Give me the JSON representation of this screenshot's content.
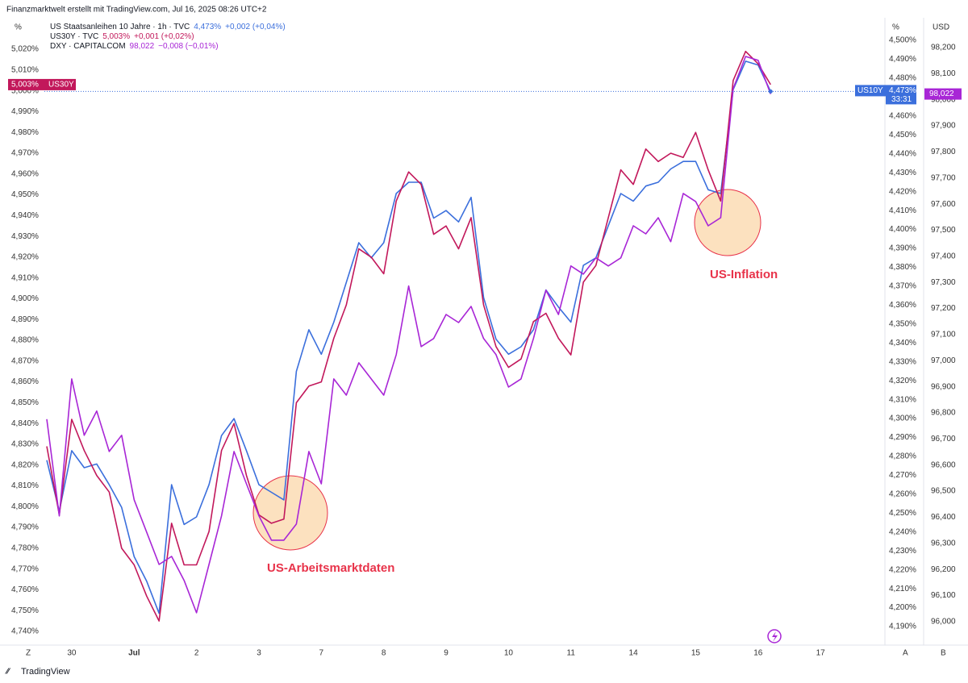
{
  "chart_data": {
    "type": "line",
    "title": "Finanzmarktwelt erstellt mit TradingView.com, Jul 16, 2025 08:26 UTC+2",
    "logo": "TradingView",
    "y_unit": "%",
    "y2_unit": "%",
    "y3_unit": "USD",
    "corner_labels": [
      "Z",
      "A",
      "B"
    ],
    "annotations": [
      "US-Arbeitsmarktdaten",
      "US-Inflation"
    ],
    "categories": [
      null,
      null,
      "30",
      null,
      null,
      null,
      null,
      "Jul",
      null,
      null,
      null,
      null,
      "2",
      null,
      null,
      null,
      null,
      "3",
      null,
      null,
      null,
      null,
      "7",
      null,
      null,
      null,
      null,
      "8",
      null,
      null,
      null,
      null,
      "9",
      null,
      null,
      null,
      null,
      "10",
      null,
      null,
      null,
      null,
      "11",
      null,
      null,
      null,
      null,
      "14",
      null,
      null,
      null,
      null,
      "15",
      null,
      null,
      null,
      null,
      "16",
      null,
      null,
      null,
      null,
      "17"
    ],
    "series": [
      {
        "name": "US Staatsanleihen 10 Jahre · 1h · TVC",
        "tag": "US10Y",
        "price_label": "4,473%",
        "change": "+0,002 (+0,04%)",
        "countdown": "33:31",
        "color": "#3b6fdc",
        "axis": "y2",
        "values": [
          4.278,
          4.251,
          4.283,
          4.274,
          4.276,
          4.265,
          4.253,
          4.227,
          4.214,
          4.197,
          4.265,
          4.244,
          4.248,
          4.265,
          4.291,
          4.3,
          4.283,
          4.265,
          4.261,
          4.257,
          4.325,
          4.347,
          4.334,
          4.351,
          4.372,
          4.393,
          4.385,
          4.393,
          4.419,
          4.425,
          4.425,
          4.406,
          4.41,
          4.404,
          4.417,
          4.364,
          4.342,
          4.334,
          4.338,
          4.347,
          4.368,
          4.359,
          4.351,
          4.381,
          4.385,
          4.402,
          4.419,
          4.415,
          4.423,
          4.425,
          4.432,
          4.436,
          4.436,
          4.421,
          4.419,
          4.474,
          4.489,
          4.487,
          4.473,
          null,
          null,
          null,
          null
        ]
      },
      {
        "name": "US30Y · TVC",
        "tag": "US30Y",
        "price_label": "5,003%",
        "change": "+0,001 (+0,02%)",
        "color": "#c2185b",
        "axis": "y",
        "values": [
          4.829,
          4.796,
          4.842,
          4.827,
          4.815,
          4.807,
          4.78,
          4.772,
          4.757,
          4.745,
          4.792,
          4.772,
          4.772,
          4.788,
          4.827,
          4.84,
          4.815,
          4.796,
          4.792,
          4.794,
          4.85,
          4.858,
          4.86,
          4.881,
          4.897,
          4.924,
          4.92,
          4.912,
          4.947,
          4.961,
          4.955,
          4.931,
          4.935,
          4.924,
          4.939,
          4.897,
          4.877,
          4.867,
          4.871,
          4.889,
          4.893,
          4.881,
          4.873,
          4.908,
          4.916,
          4.939,
          4.962,
          4.955,
          4.972,
          4.966,
          4.97,
          4.968,
          4.98,
          4.962,
          4.947,
          5.005,
          5.019,
          5.013,
          5.003,
          null,
          null,
          null,
          null
        ]
      },
      {
        "name": "DXY · CAPITALCOM",
        "price_label": "98,022",
        "change": "−0,008 (−0,01%)",
        "color": "#a826d6",
        "axis": "y3",
        "values": [
          96.776,
          96.405,
          96.93,
          96.714,
          96.807,
          96.652,
          96.714,
          96.467,
          96.343,
          96.219,
          96.25,
          96.158,
          96.034,
          96.219,
          96.405,
          96.652,
          96.528,
          96.405,
          96.312,
          96.312,
          96.374,
          96.652,
          96.528,
          96.93,
          96.868,
          96.992,
          96.93,
          96.868,
          97.023,
          97.286,
          97.054,
          97.085,
          97.177,
          97.146,
          97.208,
          97.085,
          97.023,
          96.899,
          96.93,
          97.085,
          97.27,
          97.177,
          97.363,
          97.332,
          97.394,
          97.363,
          97.394,
          97.517,
          97.486,
          97.548,
          97.456,
          97.641,
          97.61,
          97.517,
          97.548,
          98.043,
          98.166,
          98.151,
          98.022,
          null,
          null,
          null,
          null
        ]
      }
    ],
    "ylim": [
      4.7334,
      5.034
    ],
    "y2lim": [
      4.1802,
      4.5107
    ],
    "y3lim": [
      95.91,
      98.305
    ],
    "grid": false,
    "yticks": [
      {
        "value": 4.74,
        "label": "4,740%"
      },
      {
        "value": 4.75,
        "label": "4,750%"
      },
      {
        "value": 4.76,
        "label": "4,760%"
      },
      {
        "value": 4.77,
        "label": "4,770%"
      },
      {
        "value": 4.78,
        "label": "4,780%"
      },
      {
        "value": 4.79,
        "label": "4,790%"
      },
      {
        "value": 4.8,
        "label": "4,800%"
      },
      {
        "value": 4.81,
        "label": "4,810%"
      },
      {
        "value": 4.82,
        "label": "4,820%"
      },
      {
        "value": 4.83,
        "label": "4,830%"
      },
      {
        "value": 4.84,
        "label": "4,840%"
      },
      {
        "value": 4.85,
        "label": "4,850%"
      },
      {
        "value": 4.86,
        "label": "4,860%"
      },
      {
        "value": 4.87,
        "label": "4,870%"
      },
      {
        "value": 4.88,
        "label": "4,880%"
      },
      {
        "value": 4.89,
        "label": "4,890%"
      },
      {
        "value": 4.9,
        "label": "4,900%"
      },
      {
        "value": 4.91,
        "label": "4,910%"
      },
      {
        "value": 4.92,
        "label": "4,920%"
      },
      {
        "value": 4.93,
        "label": "4,930%"
      },
      {
        "value": 4.94,
        "label": "4,940%"
      },
      {
        "value": 4.95,
        "label": "4,950%"
      },
      {
        "value": 4.96,
        "label": "4,960%"
      },
      {
        "value": 4.97,
        "label": "4,970%"
      },
      {
        "value": 4.98,
        "label": "4,980%"
      },
      {
        "value": 4.99,
        "label": "4,990%"
      },
      {
        "value": 5.0,
        "label": "5,000%"
      },
      {
        "value": 5.01,
        "label": "5,010%"
      },
      {
        "value": 5.02,
        "label": "5,020%"
      }
    ],
    "y2ticks": [
      {
        "value": 4.19,
        "label": "4,190%"
      },
      {
        "value": 4.2,
        "label": "4,200%"
      },
      {
        "value": 4.21,
        "label": "4,210%"
      },
      {
        "value": 4.22,
        "label": "4,220%"
      },
      {
        "value": 4.23,
        "label": "4,230%"
      },
      {
        "value": 4.24,
        "label": "4,240%"
      },
      {
        "value": 4.25,
        "label": "4,250%"
      },
      {
        "value": 4.26,
        "label": "4,260%"
      },
      {
        "value": 4.27,
        "label": "4,270%"
      },
      {
        "value": 4.28,
        "label": "4,280%"
      },
      {
        "value": 4.29,
        "label": "4,290%"
      },
      {
        "value": 4.3,
        "label": "4,300%"
      },
      {
        "value": 4.31,
        "label": "4,310%"
      },
      {
        "value": 4.32,
        "label": "4,320%"
      },
      {
        "value": 4.33,
        "label": "4,330%"
      },
      {
        "value": 4.34,
        "label": "4,340%"
      },
      {
        "value": 4.35,
        "label": "4,350%"
      },
      {
        "value": 4.36,
        "label": "4,360%"
      },
      {
        "value": 4.37,
        "label": "4,370%"
      },
      {
        "value": 4.38,
        "label": "4,380%"
      },
      {
        "value": 4.39,
        "label": "4,390%"
      },
      {
        "value": 4.4,
        "label": "4,400%"
      },
      {
        "value": 4.41,
        "label": "4,410%"
      },
      {
        "value": 4.42,
        "label": "4,420%"
      },
      {
        "value": 4.43,
        "label": "4,430%"
      },
      {
        "value": 4.44,
        "label": "4,440%"
      },
      {
        "value": 4.45,
        "label": "4,450%"
      },
      {
        "value": 4.46,
        "label": "4,460%"
      },
      {
        "value": 4.47,
        "label": "4,470%"
      },
      {
        "value": 4.48,
        "label": "4,480%"
      },
      {
        "value": 4.49,
        "label": "4,490%"
      },
      {
        "value": 4.5,
        "label": "4,500%"
      }
    ],
    "y3ticks": [
      {
        "value": 96.0,
        "label": "96,000"
      },
      {
        "value": 96.1,
        "label": "96,100"
      },
      {
        "value": 96.2,
        "label": "96,200"
      },
      {
        "value": 96.3,
        "label": "96,300"
      },
      {
        "value": 96.4,
        "label": "96,400"
      },
      {
        "value": 96.5,
        "label": "96,500"
      },
      {
        "value": 96.6,
        "label": "96,600"
      },
      {
        "value": 96.7,
        "label": "96,700"
      },
      {
        "value": 96.8,
        "label": "96,800"
      },
      {
        "value": 96.9,
        "label": "96,900"
      },
      {
        "value": 97.0,
        "label": "97,000"
      },
      {
        "value": 97.1,
        "label": "97,100"
      },
      {
        "value": 97.2,
        "label": "97,200"
      },
      {
        "value": 97.3,
        "label": "97,300"
      },
      {
        "value": 97.4,
        "label": "97,400"
      },
      {
        "value": 97.5,
        "label": "97,500"
      },
      {
        "value": 97.6,
        "label": "97,600"
      },
      {
        "value": 97.7,
        "label": "97,700"
      },
      {
        "value": 97.8,
        "label": "97,800"
      },
      {
        "value": 97.9,
        "label": "97,900"
      },
      {
        "value": 98.0,
        "label": "98,000"
      },
      {
        "value": 98.1,
        "label": "98,100"
      },
      {
        "value": 98.2,
        "label": "98,200"
      }
    ]
  }
}
